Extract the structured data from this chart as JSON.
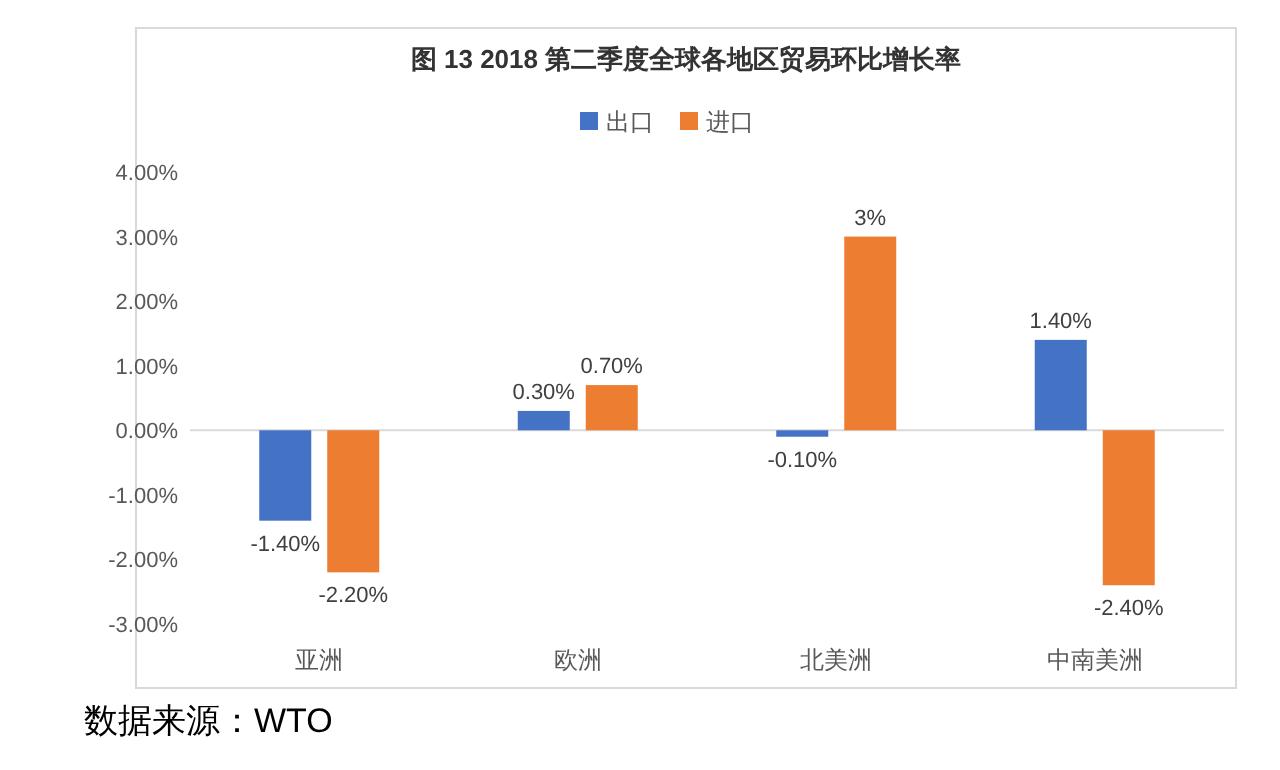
{
  "chart_data": {
    "type": "bar",
    "title": "图 13 2018 第二季度全球各地区贸易环比增长率",
    "categories": [
      "亚洲",
      "欧洲",
      "北美洲",
      "中南美洲"
    ],
    "series": [
      {
        "name": "出口",
        "color": "#4472c4",
        "values": [
          -1.4,
          0.3,
          -0.1,
          1.4
        ],
        "value_labels": [
          "-1.40%",
          "0.30%",
          "-0.10%",
          "1.40%"
        ]
      },
      {
        "name": "进口",
        "color": "#ed7d31",
        "values": [
          -2.2,
          0.7,
          3,
          -2.4
        ],
        "value_labels": [
          "-2.20%",
          "0.70%",
          "3%",
          "-2.40%"
        ]
      }
    ],
    "ylim": [
      -3,
      4
    ],
    "yticks": [
      {
        "value": -3,
        "label": "-3.00%"
      },
      {
        "value": -2,
        "label": "-2.00%"
      },
      {
        "value": -1,
        "label": "-1.00%"
      },
      {
        "value": 0,
        "label": "0.00%"
      },
      {
        "value": 1,
        "label": "1.00%"
      },
      {
        "value": 2,
        "label": "2.00%"
      },
      {
        "value": 3,
        "label": "3.00%"
      },
      {
        "value": 4,
        "label": "4.00%"
      }
    ],
    "legend": "top",
    "annotations": [
      "数据来源：WTO"
    ]
  }
}
